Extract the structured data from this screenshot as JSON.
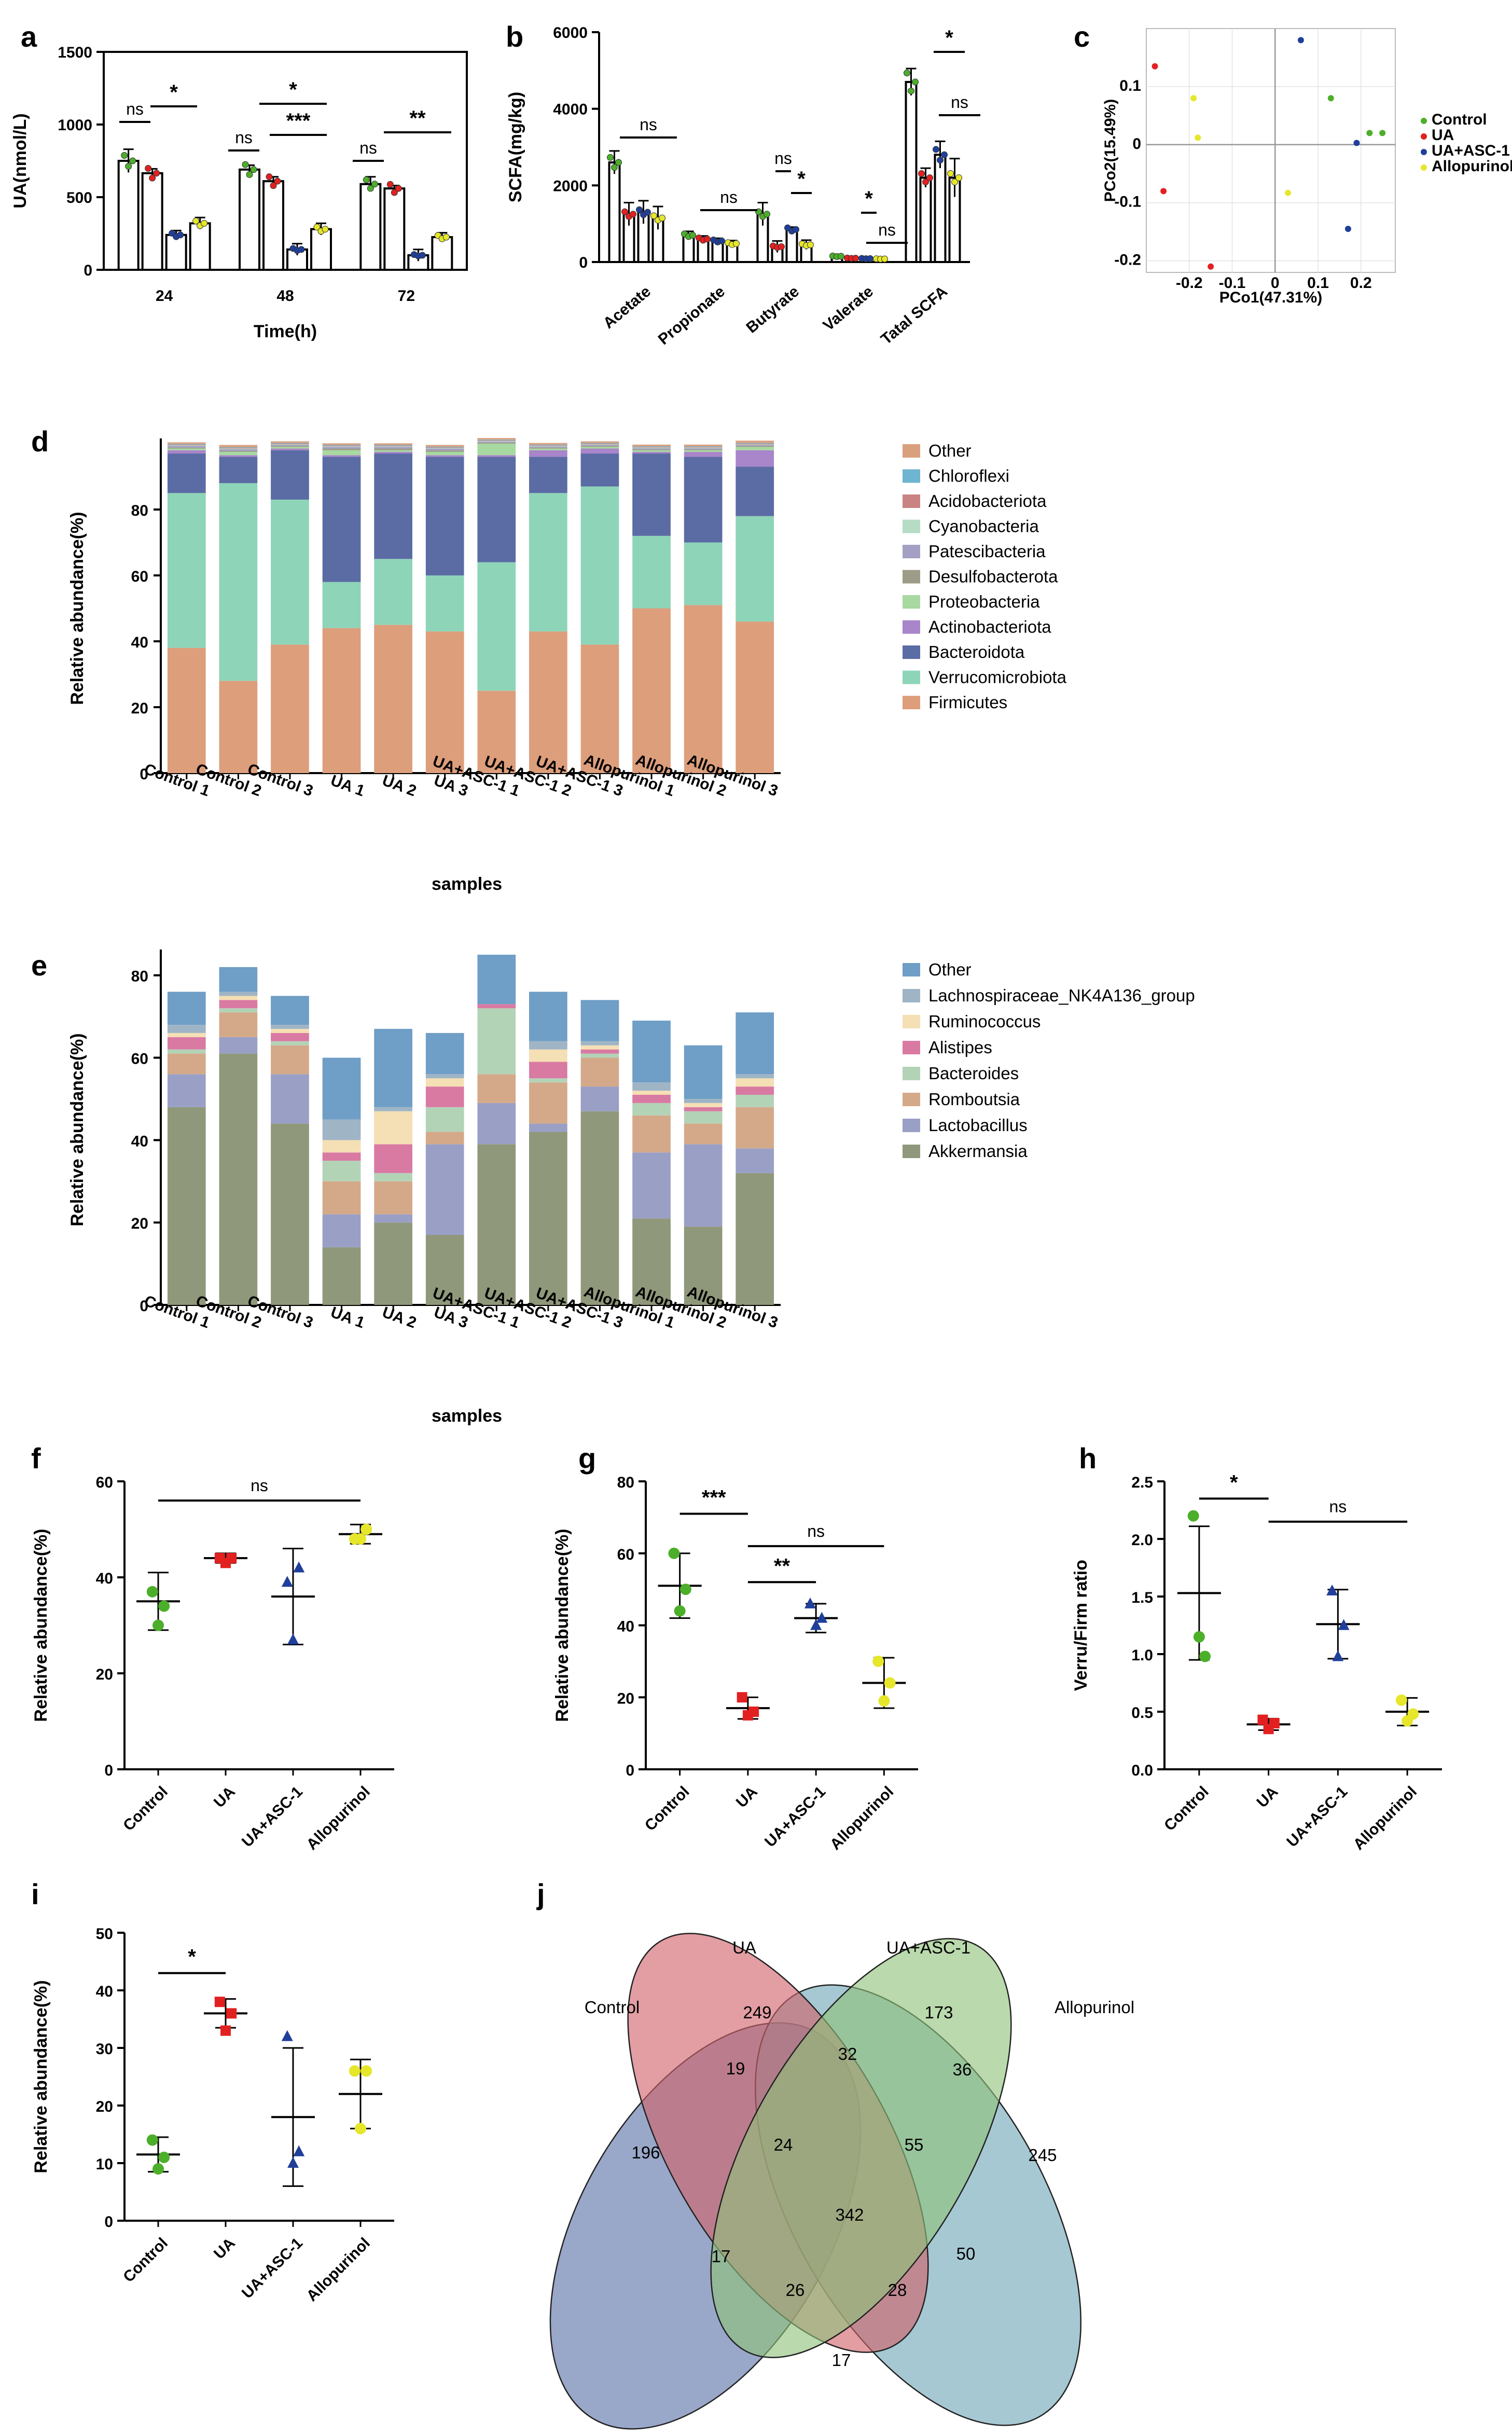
{
  "panel_labels": {
    "a": "a",
    "b": "b",
    "c": "c",
    "d": "d",
    "e": "e",
    "f": "f",
    "g": "g",
    "h": "h",
    "i": "i",
    "j": "j"
  },
  "colors": {
    "Control": "#4caf2a",
    "UA": "#e32020",
    "UA+ASC-1": "#1f3f9a",
    "Allopurinol": "#e6e62a"
  },
  "chart_data": [
    {
      "id": "a",
      "type": "bar",
      "ylabel": "UA(nmol/L)",
      "xlabel": "Time(h)",
      "categories": [
        "24",
        "48",
        "72"
      ],
      "ylim": [
        0,
        1500
      ],
      "yticks": [
        0,
        500,
        1000,
        1500
      ],
      "series": [
        {
          "name": "Control",
          "values": [
            750,
            690,
            590
          ],
          "err": [
            80,
            30,
            50
          ]
        },
        {
          "name": "UA",
          "values": [
            665,
            610,
            560
          ],
          "err": [
            30,
            30,
            20
          ]
        },
        {
          "name": "UA+ASC-1",
          "values": [
            240,
            140,
            100
          ],
          "err": [
            30,
            40,
            40
          ]
        },
        {
          "name": "Allopurinol",
          "values": [
            320,
            280,
            225
          ],
          "err": [
            40,
            40,
            30
          ]
        }
      ],
      "significance": [
        "ns",
        "*",
        "ns",
        "*",
        "***",
        "ns",
        "**"
      ]
    },
    {
      "id": "b",
      "type": "bar",
      "ylabel": "SCFA(mg/kg)",
      "categories": [
        "Acetate",
        "Propionate",
        "Butyrate",
        "Valerate",
        "Tatal SCFA"
      ],
      "ylim": [
        0,
        6000
      ],
      "yticks": [
        0,
        2000,
        4000,
        6000
      ],
      "series": [
        {
          "name": "Control",
          "values": [
            2600,
            700,
            1250,
            150,
            4700
          ],
          "err": [
            300,
            100,
            300,
            50,
            350
          ]
        },
        {
          "name": "UA",
          "values": [
            1250,
            600,
            400,
            100,
            2200
          ],
          "err": [
            300,
            80,
            150,
            40,
            250
          ]
        },
        {
          "name": "UA+ASC-1",
          "values": [
            1300,
            550,
            850,
            90,
            2800
          ],
          "err": [
            300,
            70,
            60,
            30,
            350
          ]
        },
        {
          "name": "Allopurinol",
          "values": [
            1150,
            480,
            450,
            80,
            2200
          ],
          "err": [
            300,
            80,
            120,
            30,
            500
          ]
        }
      ],
      "significance": [
        "ns",
        "ns",
        "ns",
        "*",
        "*",
        "ns",
        "*",
        "ns"
      ]
    },
    {
      "id": "c",
      "type": "scatter",
      "xlabel": "PCo1(47.31%)",
      "ylabel": "PCo2(15.49%)",
      "xticks": [
        "-0.2",
        "-0.1",
        "0",
        "0.1",
        "0.2"
      ],
      "yticks": [
        "-0.2",
        "-0.1",
        "0",
        "0.1"
      ],
      "xlim": [
        -0.3,
        0.28
      ],
      "ylim": [
        -0.22,
        0.2
      ],
      "legend": [
        "Control",
        "UA",
        "UA+ASC-1",
        "Allopurinol"
      ],
      "points": [
        {
          "group": "Control",
          "x": 0.13,
          "y": 0.08
        },
        {
          "group": "Control",
          "x": 0.22,
          "y": 0.02
        },
        {
          "group": "Control",
          "x": 0.25,
          "y": 0.02
        },
        {
          "group": "UA",
          "x": -0.28,
          "y": 0.135
        },
        {
          "group": "UA",
          "x": -0.26,
          "y": -0.08
        },
        {
          "group": "UA",
          "x": -0.15,
          "y": -0.21
        },
        {
          "group": "UA+ASC-1",
          "x": 0.06,
          "y": 0.18
        },
        {
          "group": "UA+ASC-1",
          "x": 0.19,
          "y": 0.003
        },
        {
          "group": "UA+ASC-1",
          "x": 0.17,
          "y": -0.145
        },
        {
          "group": "Allopurinol",
          "x": -0.19,
          "y": 0.08
        },
        {
          "group": "Allopurinol",
          "x": -0.18,
          "y": 0.012
        },
        {
          "group": "Allopurinol",
          "x": 0.03,
          "y": -0.083
        }
      ]
    },
    {
      "id": "d",
      "type": "bar",
      "stacked": true,
      "ylabel": "Relative abundance(%)",
      "xlabel": "samples",
      "categories": [
        "Control 1",
        "Control 2",
        "Control 3",
        "UA 1",
        "UA 2",
        "UA 3",
        "UA+ASC-1 1",
        "UA+ASC-1 2",
        "UA+ASC-1 3",
        "Allopurinol 1",
        "Allopurinol 2",
        "Allopurinol 3"
      ],
      "ylim": [
        0,
        100
      ],
      "yticks": [
        0,
        20,
        40,
        60,
        80
      ],
      "legend": [
        "Other",
        "Chloroflexi",
        "Acidobacteriota",
        "Cyanobacteria",
        "Patescibacteria",
        "Desulfobacterota",
        "Proteobacteria",
        "Actinobacteriota",
        "Bacteroidota",
        "Verrucomicrobiota",
        "Firmicutes"
      ],
      "series": [
        {
          "name": "Firmicutes",
          "values": [
            38,
            28,
            39,
            44,
            45,
            43,
            25,
            43,
            39,
            50,
            51,
            46
          ],
          "color": "#dd9e7c"
        },
        {
          "name": "Verrucomicrobiota",
          "values": [
            47,
            60,
            44,
            14,
            20,
            17,
            39,
            42,
            48,
            22,
            19,
            32
          ],
          "color": "#8ed4b8"
        },
        {
          "name": "Bacteroidota",
          "values": [
            12,
            8,
            15,
            38,
            32,
            36,
            32,
            11,
            10,
            25,
            26,
            15
          ],
          "color": "#5b6ba4"
        },
        {
          "name": "Actinobacteriota",
          "values": [
            1,
            0.5,
            0.5,
            0.5,
            0.5,
            0.5,
            0.5,
            2,
            1.5,
            0.5,
            1.5,
            5
          ],
          "color": "#a985c9"
        },
        {
          "name": "Proteobacteria",
          "values": [
            0.5,
            1,
            0.5,
            1.5,
            0.5,
            1,
            3.5,
            0.5,
            0.5,
            0.5,
            0.5,
            1
          ],
          "color": "#a7d9a0"
        },
        {
          "name": "Desulfobacterota",
          "values": [
            0.3,
            0.3,
            0.3,
            0.5,
            0.5,
            0.5,
            0.3,
            0.3,
            0.3,
            0.3,
            0.3,
            0.3
          ],
          "color": "#9c9c88"
        },
        {
          "name": "Patescibacteria",
          "values": [
            0.5,
            0.5,
            0.3,
            0.5,
            0.5,
            0.5,
            0.3,
            0.3,
            0.3,
            0.3,
            0.3,
            0.3
          ],
          "color": "#a3a0c4"
        },
        {
          "name": "Cyanobacteria",
          "values": [
            0.2,
            0.2,
            0.2,
            0.2,
            0.2,
            0.2,
            0.2,
            0.2,
            0.2,
            0.2,
            0.2,
            0.2
          ],
          "color": "#b6dcc6"
        },
        {
          "name": "Acidobacteriota",
          "values": [
            0.2,
            0.2,
            0.2,
            0.2,
            0.2,
            0.2,
            0.2,
            0.2,
            0.2,
            0.2,
            0.2,
            0.2
          ],
          "color": "#c98383"
        },
        {
          "name": "Chloroflexi",
          "values": [
            0.2,
            0.2,
            0.2,
            0.2,
            0.2,
            0.2,
            0.2,
            0.2,
            0.2,
            0.2,
            0.2,
            0.2
          ],
          "color": "#6fb4d0"
        },
        {
          "name": "Other",
          "values": [
            0.5,
            0.7,
            0.5,
            0.5,
            0.5,
            0.5,
            0.5,
            0.5,
            0.5,
            0.5,
            0.5,
            0.7
          ],
          "color": "#d9a07e"
        }
      ]
    },
    {
      "id": "e",
      "type": "bar",
      "stacked": true,
      "ylabel": "Relative abundance(%)",
      "xlabel": "samples",
      "categories": [
        "Control 1",
        "Control 2",
        "Control 3",
        "UA 1",
        "UA 2",
        "UA 3",
        "UA+ASC-1 1",
        "UA+ASC-1 2",
        "UA+ASC-1 3",
        "Allopurinol 1",
        "Allopurinol 2",
        "Allopurinol 3"
      ],
      "ylim": [
        0,
        85
      ],
      "yticks": [
        0,
        20,
        40,
        60,
        80
      ],
      "legend": [
        "Other",
        "Lachnospiraceae_NK4A136_group",
        "Ruminococcus",
        "Alistipes",
        "Bacteroides",
        "Romboutsia",
        "Lactobacillus",
        "Akkermansia"
      ],
      "series": [
        {
          "name": "Akkermansia",
          "values": [
            48,
            61,
            44,
            14,
            20,
            17,
            39,
            42,
            47,
            21,
            19,
            32
          ],
          "color": "#8f987a"
        },
        {
          "name": "Lactobacillus",
          "values": [
            8,
            4,
            12,
            8,
            2,
            22,
            10,
            2,
            6,
            16,
            20,
            6
          ],
          "color": "#9a9fc6"
        },
        {
          "name": "Romboutsia",
          "values": [
            5,
            6,
            7,
            8,
            8,
            3,
            7,
            10,
            7,
            9,
            5,
            10
          ],
          "color": "#d4a989"
        },
        {
          "name": "Bacteroides",
          "values": [
            1,
            1,
            1,
            5,
            2,
            6,
            16,
            1,
            1,
            3,
            3,
            3
          ],
          "color": "#b3d3b7"
        },
        {
          "name": "Alistipes",
          "values": [
            3,
            2,
            2,
            2,
            7,
            5,
            1,
            4,
            1,
            2,
            1,
            2
          ],
          "color": "#d97aa3"
        },
        {
          "name": "Ruminococcus",
          "values": [
            1,
            1,
            1,
            3,
            8,
            2,
            0,
            3,
            1,
            1,
            1,
            2
          ],
          "color": "#f5dfb4"
        },
        {
          "name": "Lachnospiraceae_NK4A136_group",
          "values": [
            2,
            1,
            1,
            5,
            1,
            1,
            0,
            2,
            1,
            2,
            1,
            1
          ],
          "color": "#9fb5c6"
        },
        {
          "name": "Other",
          "values": [
            8,
            6,
            7,
            15,
            19,
            10,
            12,
            12,
            10,
            15,
            13,
            15
          ],
          "color": "#6f9ec6"
        }
      ]
    },
    {
      "id": "f",
      "type": "scatter",
      "ylabel": "Relative abundance(%)",
      "categories": [
        "Control",
        "UA",
        "UA+ASC-1",
        "Allopurinol"
      ],
      "ylim": [
        0,
        60
      ],
      "yticks": [
        0,
        20,
        40,
        60
      ],
      "mean": [
        35,
        44,
        36,
        49
      ],
      "sd": [
        6,
        1,
        10,
        2
      ],
      "points": [
        [
          37,
          30,
          34
        ],
        [
          44,
          43,
          44
        ],
        [
          39,
          27,
          42
        ],
        [
          48,
          48,
          50
        ]
      ],
      "significance": [
        "ns"
      ]
    },
    {
      "id": "g",
      "type": "scatter",
      "ylabel": "Relative abundance(%)",
      "categories": [
        "Control",
        "UA",
        "UA+ASC-1",
        "Allopurinol"
      ],
      "ylim": [
        0,
        80
      ],
      "yticks": [
        0,
        20,
        40,
        60,
        80
      ],
      "mean": [
        51,
        17,
        42,
        24
      ],
      "sd": [
        9,
        3,
        4,
        7
      ],
      "points": [
        [
          60,
          44,
          50
        ],
        [
          20,
          15,
          16
        ],
        [
          46,
          40,
          42
        ],
        [
          30,
          19,
          24
        ]
      ],
      "significance": [
        "***",
        "ns",
        "**"
      ]
    },
    {
      "id": "h",
      "type": "scatter",
      "ylabel": "Verru/Firm ratio",
      "categories": [
        "Control",
        "UA",
        "UA+ASC-1",
        "Allopurinol"
      ],
      "ylim": [
        0,
        2.5
      ],
      "yticks": [
        "0.0",
        "0.5",
        "1.0",
        "1.5",
        "2.0",
        "2.5"
      ],
      "mean": [
        1.53,
        0.39,
        1.26,
        0.5
      ],
      "sd": [
        0.58,
        0.05,
        0.3,
        0.12
      ],
      "points": [
        [
          2.2,
          1.15,
          0.98
        ],
        [
          0.43,
          0.35,
          0.4
        ],
        [
          1.55,
          0.98,
          1.25
        ],
        [
          0.6,
          0.42,
          0.48
        ]
      ],
      "significance": [
        "*",
        "ns"
      ]
    },
    {
      "id": "i",
      "type": "scatter",
      "ylabel": "Relative abundance(%)",
      "categories": [
        "Control",
        "UA",
        "UA+ASC-1",
        "Allopurinol"
      ],
      "ylim": [
        0,
        50
      ],
      "yticks": [
        0,
        10,
        20,
        30,
        40,
        50
      ],
      "mean": [
        11.5,
        36,
        18,
        22
      ],
      "sd": [
        3,
        2.5,
        12,
        6
      ],
      "points": [
        [
          14,
          9,
          11
        ],
        [
          38,
          33,
          36
        ],
        [
          32,
          10,
          12
        ],
        [
          26,
          16,
          26
        ]
      ],
      "significance": [
        "*"
      ]
    }
  ],
  "venn": {
    "sets": [
      "Control",
      "UA",
      "UA+ASC-1",
      "Allopurinol"
    ],
    "numbers": {
      "control_only": "196",
      "ua_only": "249",
      "asc_only": "173",
      "allo_only": "245",
      "c_ua": "19",
      "ua_asc": "32",
      "asc_allo": "36",
      "c_ua_asc": "24",
      "ua_asc_allo": "55",
      "all": "342",
      "c_asc": "17",
      "c_asc_allo": "26",
      "c_ua_allo": "28",
      "ua_allo": "50",
      "c_allo": "17"
    }
  }
}
